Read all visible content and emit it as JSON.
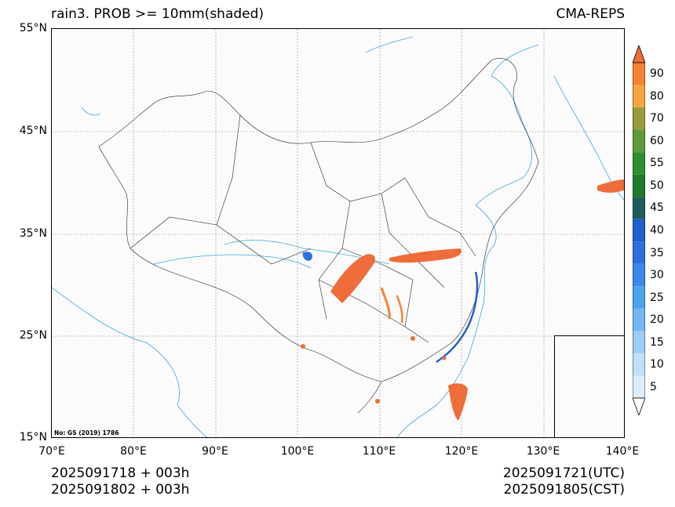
{
  "header": {
    "title": "rain3. PROB >= 10mm(shaded)",
    "source": "CMA-REPS"
  },
  "axes": {
    "lat_labels": [
      "55°N",
      "45°N",
      "35°N",
      "25°N",
      "15°N"
    ],
    "lon_labels": [
      "70°E",
      "80°E",
      "90°E",
      "100°E",
      "110°E",
      "120°E",
      "130°E",
      "140°E"
    ],
    "lat_range": [
      15,
      55
    ],
    "lon_range": [
      70,
      140
    ],
    "grid": true
  },
  "map_note": "No: GS (2019) 1786",
  "footer": {
    "init_utc": "2025091718  +  003h",
    "init_cst": "2025091802  +  003h",
    "valid_utc": "2025091721(UTC)",
    "valid_cst": "2025091805(CST)"
  },
  "colorbar": {
    "levels": [
      "5",
      "10",
      "15",
      "20",
      "25",
      "30",
      "35",
      "40",
      "45",
      "50",
      "55",
      "60",
      "70",
      "80",
      "90"
    ],
    "colors": [
      "#dceefc",
      "#bfe0fa",
      "#9dcdf6",
      "#74b8f2",
      "#4fa3ee",
      "#3d88ea",
      "#2d6fe0",
      "#1f5fcf",
      "#1e5e5a",
      "#1f7a2a",
      "#2e8f2e",
      "#5f9a3a",
      "#9a9a3c",
      "#f5a640",
      "#f48432"
    ],
    "over_color": "#ef6d3a",
    "under_color": "#ffffff"
  }
}
